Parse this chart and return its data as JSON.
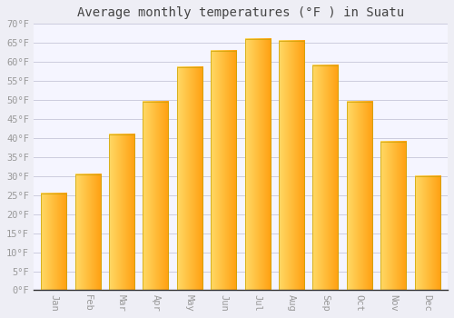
{
  "title": "Average monthly temperatures (°F ) in Suatu",
  "months": [
    "Jan",
    "Feb",
    "Mar",
    "Apr",
    "May",
    "Jun",
    "Jul",
    "Aug",
    "Sep",
    "Oct",
    "Nov",
    "Dec"
  ],
  "values": [
    25.5,
    30.5,
    41.0,
    49.5,
    58.5,
    63.0,
    66.0,
    65.5,
    59.0,
    49.5,
    39.0,
    30.0
  ],
  "bar_color_left": "#FFD966",
  "bar_color_right": "#FFA010",
  "bar_border_color": "#C8A000",
  "background_color": "#EEEEF5",
  "plot_bg_color": "#F5F5FF",
  "grid_color": "#CCCCDD",
  "ylim": [
    0,
    70
  ],
  "yticks": [
    0,
    5,
    10,
    15,
    20,
    25,
    30,
    35,
    40,
    45,
    50,
    55,
    60,
    65,
    70
  ],
  "title_fontsize": 10,
  "tick_fontsize": 7.5,
  "tick_color": "#999999",
  "font_family": "monospace"
}
